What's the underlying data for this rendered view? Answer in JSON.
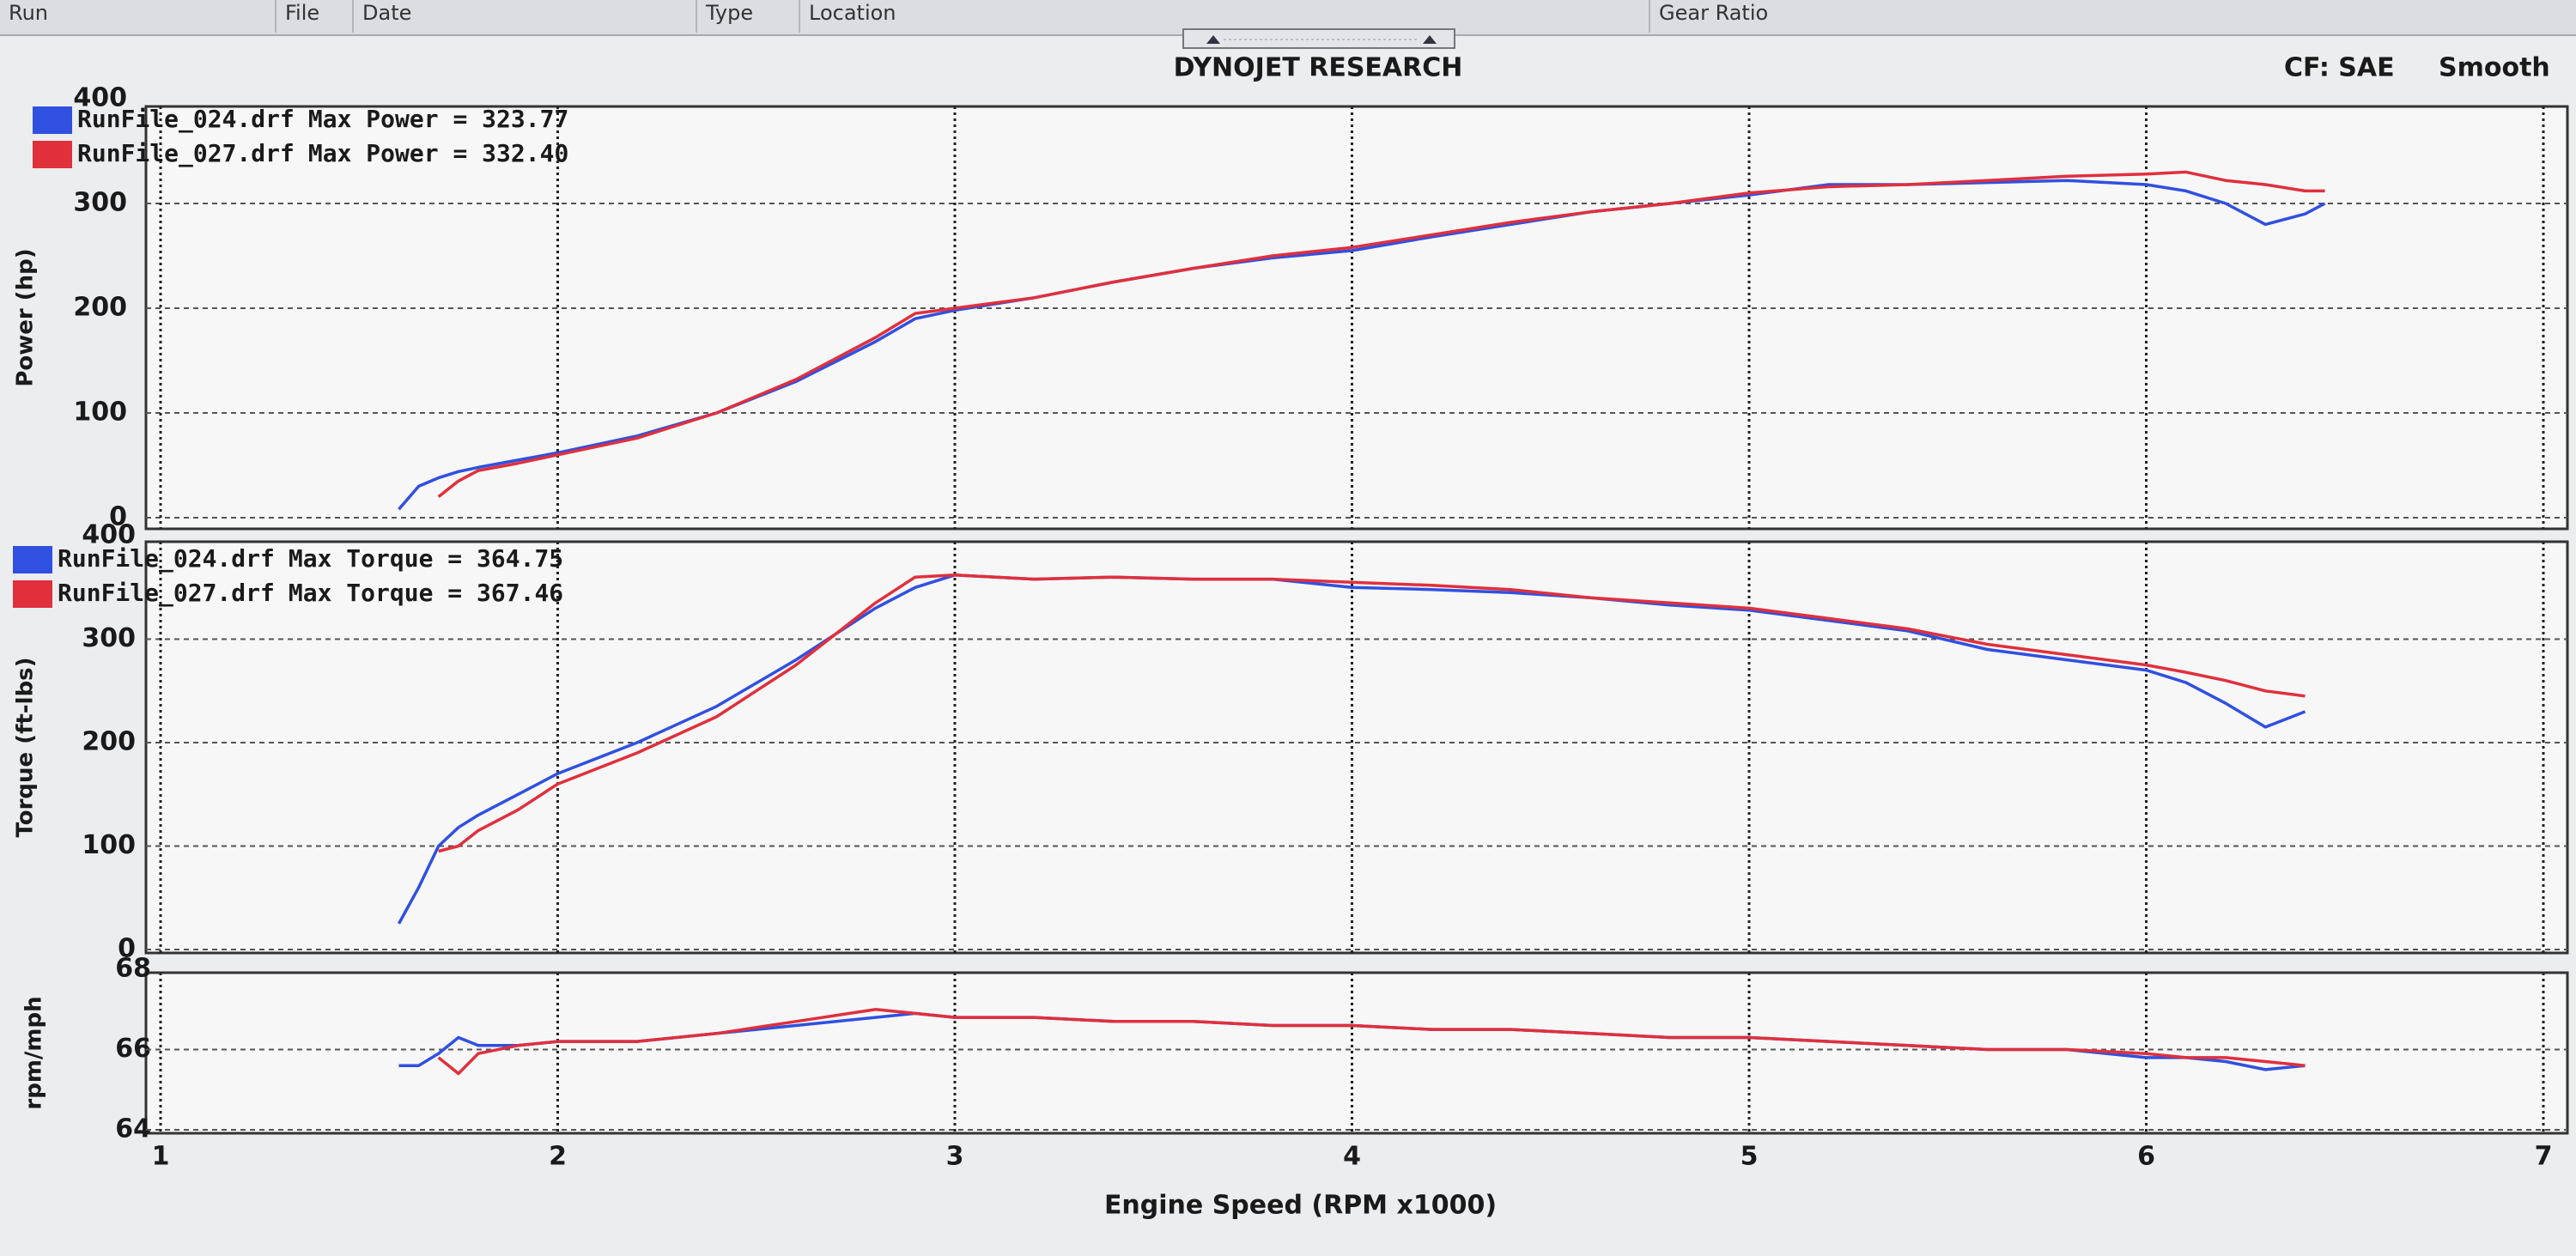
{
  "header": {
    "columns": [
      "Run",
      "File",
      "Date",
      "Type",
      "Location",
      "Gear Ratio"
    ],
    "title": "DYNOJET RESEARCH",
    "settings": [
      "CF: SAE",
      "Smooth"
    ]
  },
  "chart_data": [
    {
      "type": "line",
      "ylabel": "Power (hp)",
      "xlim": [
        1,
        7
      ],
      "ylim": [
        0,
        400
      ],
      "yticks": [
        0,
        100,
        200,
        300,
        400
      ],
      "x": [
        1.6,
        1.65,
        1.7,
        1.75,
        1.8,
        1.9,
        2.0,
        2.2,
        2.4,
        2.6,
        2.8,
        2.9,
        3.0,
        3.2,
        3.4,
        3.6,
        3.8,
        4.0,
        4.2,
        4.4,
        4.6,
        4.8,
        5.0,
        5.2,
        5.4,
        5.6,
        5.8,
        6.0,
        6.1,
        6.2,
        6.3,
        6.4,
        6.45
      ],
      "series": [
        {
          "name": "RunFile_024.drf",
          "annotation": "Max Power = 323.77",
          "color": "#3050e0",
          "values": [
            8,
            30,
            38,
            44,
            48,
            55,
            62,
            78,
            100,
            130,
            168,
            190,
            198,
            210,
            225,
            238,
            248,
            255,
            268,
            280,
            292,
            300,
            308,
            318,
            318,
            320,
            322,
            318,
            312,
            300,
            280,
            290,
            300
          ]
        },
        {
          "name": "RunFile_027.drf",
          "annotation": "Max Power = 332.40",
          "color": "#e0303c",
          "values": [
            null,
            null,
            20,
            35,
            45,
            52,
            60,
            76,
            100,
            132,
            172,
            195,
            200,
            210,
            225,
            238,
            250,
            258,
            270,
            282,
            292,
            300,
            310,
            316,
            318,
            322,
            326,
            328,
            330,
            322,
            318,
            312,
            312
          ]
        }
      ]
    },
    {
      "type": "line",
      "ylabel": "Torque (ft-lbs)",
      "xlim": [
        1,
        7
      ],
      "ylim": [
        0,
        400
      ],
      "yticks": [
        0,
        100,
        200,
        300,
        400
      ],
      "x": [
        1.6,
        1.65,
        1.7,
        1.75,
        1.8,
        1.9,
        2.0,
        2.2,
        2.4,
        2.6,
        2.8,
        2.9,
        3.0,
        3.2,
        3.4,
        3.6,
        3.8,
        4.0,
        4.2,
        4.4,
        4.6,
        4.8,
        5.0,
        5.2,
        5.4,
        5.6,
        5.8,
        6.0,
        6.1,
        6.2,
        6.3,
        6.4,
        6.45
      ],
      "series": [
        {
          "name": "RunFile_024.drf",
          "annotation": "Max Torque = 364.75",
          "color": "#3050e0",
          "values": [
            25,
            60,
            100,
            118,
            130,
            150,
            170,
            200,
            235,
            280,
            330,
            350,
            362,
            358,
            360,
            358,
            358,
            350,
            348,
            345,
            340,
            333,
            328,
            318,
            308,
            290,
            280,
            270,
            258,
            238,
            215,
            230,
            null
          ]
        },
        {
          "name": "RunFile_027.drf",
          "annotation": "Max Torque = 367.46",
          "color": "#e0303c",
          "values": [
            null,
            null,
            95,
            100,
            115,
            135,
            160,
            190,
            225,
            275,
            335,
            360,
            362,
            358,
            360,
            358,
            358,
            355,
            352,
            348,
            340,
            335,
            330,
            320,
            310,
            295,
            285,
            275,
            268,
            260,
            250,
            245,
            null
          ]
        }
      ]
    },
    {
      "type": "line",
      "ylabel": "rpm/mph",
      "xlabel": "Engine Speed (RPM x1000)",
      "xlim": [
        1,
        7
      ],
      "xticks": [
        1,
        2,
        3,
        4,
        5,
        6,
        7
      ],
      "ylim": [
        64,
        68
      ],
      "yticks": [
        64,
        66,
        68
      ],
      "x": [
        1.6,
        1.65,
        1.7,
        1.75,
        1.8,
        1.9,
        2.0,
        2.2,
        2.4,
        2.6,
        2.8,
        2.9,
        3.0,
        3.2,
        3.4,
        3.6,
        3.8,
        4.0,
        4.2,
        4.4,
        4.6,
        4.8,
        5.0,
        5.2,
        5.4,
        5.6,
        5.8,
        6.0,
        6.1,
        6.2,
        6.3,
        6.4,
        6.45
      ],
      "series": [
        {
          "color": "#3050e0",
          "values": [
            65.6,
            65.6,
            65.9,
            66.3,
            66.1,
            66.1,
            66.2,
            66.2,
            66.4,
            66.6,
            66.8,
            66.9,
            66.8,
            66.8,
            66.7,
            66.7,
            66.6,
            66.6,
            66.5,
            66.5,
            66.4,
            66.3,
            66.3,
            66.2,
            66.1,
            66.0,
            66.0,
            65.8,
            65.8,
            65.7,
            65.5,
            65.6,
            null
          ]
        },
        {
          "color": "#e0303c",
          "values": [
            null,
            null,
            65.8,
            65.4,
            65.9,
            66.1,
            66.2,
            66.2,
            66.4,
            66.7,
            67.0,
            66.9,
            66.8,
            66.8,
            66.7,
            66.7,
            66.6,
            66.6,
            66.5,
            66.5,
            66.4,
            66.3,
            66.3,
            66.2,
            66.1,
            66.0,
            66.0,
            65.9,
            65.8,
            65.8,
            65.7,
            65.6,
            null
          ]
        }
      ]
    }
  ]
}
